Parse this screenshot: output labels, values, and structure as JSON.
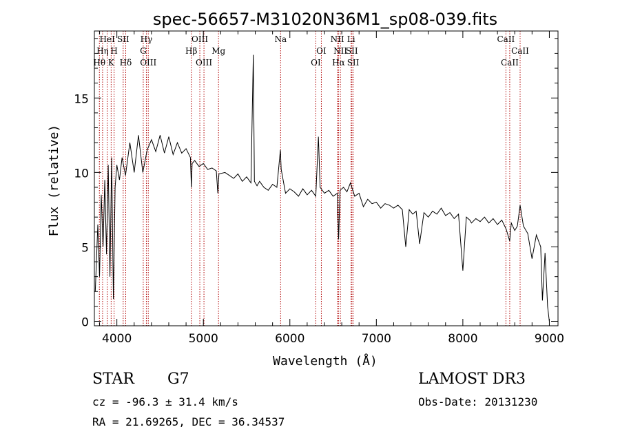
{
  "chart_data": {
    "type": "line",
    "title": "spec-56657-M31020N36M1_sp08-039.fits",
    "xlabel": "Wavelength (Å)",
    "ylabel": "Flux (relative)",
    "xlim": [
      3740,
      9100
    ],
    "ylim": [
      -0.3,
      19.5
    ],
    "x_ticks": [
      4000,
      5000,
      6000,
      7000,
      8000,
      9000
    ],
    "x_tick_labels": [
      "4000",
      "5000",
      "6000",
      "7000",
      "8000",
      "9000"
    ],
    "y_ticks": [
      0,
      5,
      10,
      15
    ],
    "y_tick_labels": [
      "0",
      "5",
      "10",
      "15"
    ],
    "grid": false,
    "series": [
      {
        "name": "spectrum",
        "color": "#000000",
        "x": [
          3750,
          3780,
          3800,
          3820,
          3840,
          3860,
          3880,
          3900,
          3920,
          3940,
          3960,
          3980,
          4000,
          4030,
          4060,
          4100,
          4150,
          4200,
          4250,
          4300,
          4350,
          4400,
          4450,
          4500,
          4550,
          4600,
          4650,
          4700,
          4750,
          4800,
          4850,
          4861,
          4870,
          4900,
          4950,
          5000,
          5050,
          5100,
          5150,
          5167,
          5180,
          5250,
          5300,
          5350,
          5400,
          5450,
          5500,
          5550,
          5577,
          5590,
          5620,
          5650,
          5700,
          5750,
          5800,
          5850,
          5890,
          5900,
          5950,
          6000,
          6050,
          6100,
          6150,
          6200,
          6250,
          6300,
          6330,
          6350,
          6400,
          6450,
          6500,
          6550,
          6563,
          6580,
          6620,
          6660,
          6700,
          6750,
          6800,
          6850,
          6900,
          6950,
          7000,
          7050,
          7100,
          7150,
          7200,
          7250,
          7300,
          7340,
          7380,
          7420,
          7460,
          7500,
          7550,
          7600,
          7650,
          7700,
          7750,
          7800,
          7850,
          7900,
          7950,
          8000,
          8040,
          8080,
          8100,
          8150,
          8200,
          8250,
          8300,
          8350,
          8400,
          8450,
          8500,
          8542,
          8560,
          8600,
          8630,
          8662,
          8700,
          8750,
          8800,
          8850,
          8900,
          8920,
          8950,
          8980,
          9000
        ],
        "y": [
          2.0,
          6.5,
          3.0,
          8.5,
          5.0,
          9.5,
          4.5,
          10.5,
          3.0,
          11.0,
          1.5,
          9.0,
          10.5,
          9.5,
          11.0,
          9.8,
          12.0,
          10.0,
          12.5,
          10.0,
          11.5,
          12.2,
          11.4,
          12.5,
          11.3,
          12.4,
          11.2,
          12.0,
          11.3,
          11.6,
          11.0,
          9.0,
          10.6,
          10.8,
          10.4,
          10.6,
          10.2,
          10.3,
          10.1,
          8.6,
          9.9,
          10.0,
          9.8,
          9.6,
          9.9,
          9.4,
          9.7,
          9.3,
          17.9,
          9.4,
          9.1,
          9.4,
          9.0,
          8.8,
          9.2,
          9.0,
          11.5,
          10.2,
          8.6,
          8.9,
          8.7,
          8.4,
          8.9,
          8.5,
          8.8,
          8.4,
          12.4,
          9.0,
          8.6,
          8.8,
          8.4,
          8.6,
          5.5,
          8.8,
          9.0,
          8.7,
          9.3,
          8.4,
          8.6,
          7.7,
          8.2,
          7.9,
          8.0,
          7.6,
          7.9,
          7.8,
          7.6,
          7.8,
          7.5,
          5.0,
          7.5,
          7.2,
          7.4,
          5.2,
          7.3,
          7.0,
          7.4,
          7.2,
          7.6,
          7.1,
          7.3,
          6.9,
          7.2,
          3.4,
          7.0,
          6.8,
          6.6,
          6.9,
          6.7,
          7.0,
          6.6,
          6.9,
          6.5,
          6.8,
          6.2,
          5.4,
          6.6,
          6.1,
          6.4,
          7.8,
          6.4,
          5.9,
          4.2,
          5.8,
          5.0,
          1.4,
          4.6,
          1.0,
          0.0
        ]
      }
    ],
    "lines": [
      {
        "name": "Hθ",
        "x": 3798,
        "label": "Hθ",
        "row": 3
      },
      {
        "name": "Hη",
        "x": 3835,
        "label": "Hη",
        "row": 2
      },
      {
        "name": "HeI",
        "x": 3889,
        "label": "HeI",
        "row": 1
      },
      {
        "name": "K",
        "x": 3934,
        "label": "K",
        "row": 3
      },
      {
        "name": "H",
        "x": 3968,
        "label": "H",
        "row": 2
      },
      {
        "name": "SII",
        "x": 4073,
        "label": "SII",
        "row": 1
      },
      {
        "name": "Hδ",
        "x": 4102,
        "label": "Hδ",
        "row": 3
      },
      {
        "name": "Hγ",
        "x": 4341,
        "label": "Hγ",
        "row": 1
      },
      {
        "name": "G",
        "x": 4305,
        "label": "G",
        "row": 2
      },
      {
        "name": "OIII",
        "x": 4363,
        "label": "OIII",
        "row": 3
      },
      {
        "name": "Hβ",
        "x": 4861,
        "label": "Hβ",
        "row": 2
      },
      {
        "name": "OIII",
        "x": 4959,
        "label": "OIII",
        "row": 1
      },
      {
        "name": "OIII",
        "x": 5007,
        "label": "OIII",
        "row": 3
      },
      {
        "name": "Mg",
        "x": 5175,
        "label": "Mg",
        "row": 2
      },
      {
        "name": "Na",
        "x": 5893,
        "label": "Na",
        "row": 1
      },
      {
        "name": "OI",
        "x": 6300,
        "label": "OI",
        "row": 3
      },
      {
        "name": "OI",
        "x": 6364,
        "label": "OI",
        "row": 2
      },
      {
        "name": "NII",
        "x": 6548,
        "label": "NII",
        "row": 1
      },
      {
        "name": "Hα",
        "x": 6563,
        "label": "Hα",
        "row": 3
      },
      {
        "name": "NII",
        "x": 6584,
        "label": "NII",
        "row": 2
      },
      {
        "name": "Li",
        "x": 6708,
        "label": "Li",
        "row": 1
      },
      {
        "name": "SII",
        "x": 6717,
        "label": "SII",
        "row": 2
      },
      {
        "name": "SII",
        "x": 6731,
        "label": "SII",
        "row": 3
      },
      {
        "name": "CaII",
        "x": 8498,
        "label": "CaII",
        "row": 1
      },
      {
        "name": "CaII",
        "x": 8542,
        "label": "CaII",
        "row": 3
      },
      {
        "name": "CaII",
        "x": 8662,
        "label": "CaII",
        "row": 2
      }
    ]
  },
  "info": {
    "object_class": "STAR",
    "subclass": "G7",
    "survey": "LAMOST DR3",
    "redshift": "cz = -96.3 ± 31.4 km/s",
    "obs_date": "Obs-Date: 20131230",
    "coords": "RA =  21.69265, DEC =  36.34537"
  },
  "colors": {
    "line_marker": "#b00000",
    "spectrum": "#000000",
    "axes": "#000000"
  }
}
